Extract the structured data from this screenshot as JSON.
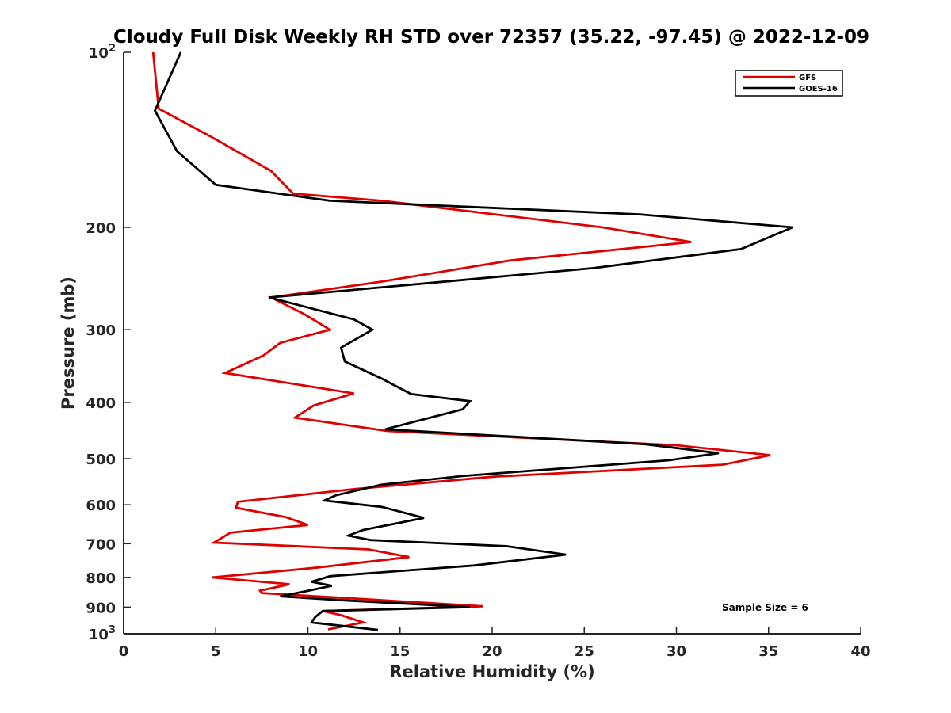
{
  "chart_data": {
    "type": "line",
    "title": "Cloudy Full Disk Weekly RH STD over 72357 (35.22, -97.45) @ 2022-12-09",
    "xlabel": "Relative Humidity (%)",
    "ylabel": "Pressure (mb)",
    "xlim": [
      0,
      40
    ],
    "ylim": [
      100,
      1000
    ],
    "yscale": "log",
    "y_reversed": true,
    "x_ticks": [
      0,
      5,
      10,
      15,
      20,
      25,
      30,
      35,
      40
    ],
    "x_tick_labels": [
      "0",
      "5",
      "10",
      "15",
      "20",
      "25",
      "30",
      "35",
      "40"
    ],
    "y_ticks": [
      100,
      200,
      300,
      400,
      500,
      600,
      700,
      800,
      900,
      1000
    ],
    "y_tick_labels": [
      {
        "base": "10",
        "sup": "2"
      },
      {
        "base": "200",
        "sup": ""
      },
      {
        "base": "300",
        "sup": ""
      },
      {
        "base": "400",
        "sup": ""
      },
      {
        "base": "500",
        "sup": ""
      },
      {
        "base": "600",
        "sup": ""
      },
      {
        "base": "700",
        "sup": ""
      },
      {
        "base": "800",
        "sup": ""
      },
      {
        "base": "900",
        "sup": ""
      },
      {
        "base": "10",
        "sup": "3"
      }
    ],
    "grid": false,
    "legend_position": "top-right",
    "annotation": "Sample Size = 6",
    "series": [
      {
        "name": "GFS",
        "color": "#e00000",
        "points": [
          [
            1.6,
            100
          ],
          [
            1.9,
            125
          ],
          [
            4.8,
            140
          ],
          [
            8.0,
            160
          ],
          [
            9.2,
            175
          ],
          [
            14.0,
            180
          ],
          [
            26.0,
            200
          ],
          [
            30.8,
            212
          ],
          [
            21.0,
            228
          ],
          [
            14.0,
            248
          ],
          [
            8.0,
            264
          ],
          [
            9.8,
            282
          ],
          [
            11.2,
            300
          ],
          [
            8.5,
            316
          ],
          [
            7.6,
            332
          ],
          [
            5.5,
            356
          ],
          [
            12.5,
            386
          ],
          [
            10.3,
            405
          ],
          [
            9.3,
            425
          ],
          [
            14.3,
            448
          ],
          [
            30.0,
            474
          ],
          [
            35.1,
            493
          ],
          [
            32.5,
            512
          ],
          [
            20.0,
            537
          ],
          [
            12.5,
            564
          ],
          [
            6.2,
            593
          ],
          [
            6.1,
            607
          ],
          [
            8.8,
            630
          ],
          [
            10.0,
            650
          ],
          [
            5.8,
            670
          ],
          [
            4.9,
            697
          ],
          [
            13.3,
            716
          ],
          [
            15.5,
            738
          ],
          [
            10.4,
            770
          ],
          [
            4.8,
            800
          ],
          [
            9.0,
            822
          ],
          [
            7.4,
            843
          ],
          [
            7.5,
            851
          ],
          [
            12.3,
            869
          ],
          [
            19.5,
            897
          ],
          [
            10.8,
            914
          ],
          [
            11.8,
            929
          ],
          [
            13.0,
            956
          ],
          [
            11.1,
            983
          ]
        ]
      },
      {
        "name": "GOES-16",
        "color": "#000000",
        "points": [
          [
            3.1,
            100
          ],
          [
            1.7,
            126
          ],
          [
            2.9,
            148
          ],
          [
            5.0,
            169
          ],
          [
            11.2,
            180
          ],
          [
            28.0,
            190
          ],
          [
            36.3,
            200
          ],
          [
            33.5,
            218
          ],
          [
            25.5,
            235
          ],
          [
            15.0,
            252
          ],
          [
            7.9,
            264
          ],
          [
            12.5,
            288
          ],
          [
            13.5,
            300
          ],
          [
            11.8,
            322
          ],
          [
            12.0,
            340
          ],
          [
            14.0,
            364
          ],
          [
            15.6,
            387
          ],
          [
            18.8,
            398
          ],
          [
            18.4,
            411
          ],
          [
            14.2,
            445
          ],
          [
            28.3,
            472
          ],
          [
            32.3,
            489
          ],
          [
            29.6,
            503
          ],
          [
            18.5,
            535
          ],
          [
            14.0,
            554
          ],
          [
            11.5,
            578
          ],
          [
            10.9,
            590
          ],
          [
            14.0,
            605
          ],
          [
            16.3,
            632
          ],
          [
            13.0,
            663
          ],
          [
            12.2,
            678
          ],
          [
            13.4,
            690
          ],
          [
            20.8,
            707
          ],
          [
            24.0,
            731
          ],
          [
            19.0,
            763
          ],
          [
            11.2,
            796
          ],
          [
            10.2,
            814
          ],
          [
            11.3,
            827
          ],
          [
            9.8,
            846
          ],
          [
            8.5,
            862
          ],
          [
            12.0,
            876
          ],
          [
            18.8,
            900
          ],
          [
            10.8,
            914
          ],
          [
            10.4,
            936
          ],
          [
            10.2,
            956
          ],
          [
            13.8,
            985
          ]
        ]
      }
    ]
  }
}
